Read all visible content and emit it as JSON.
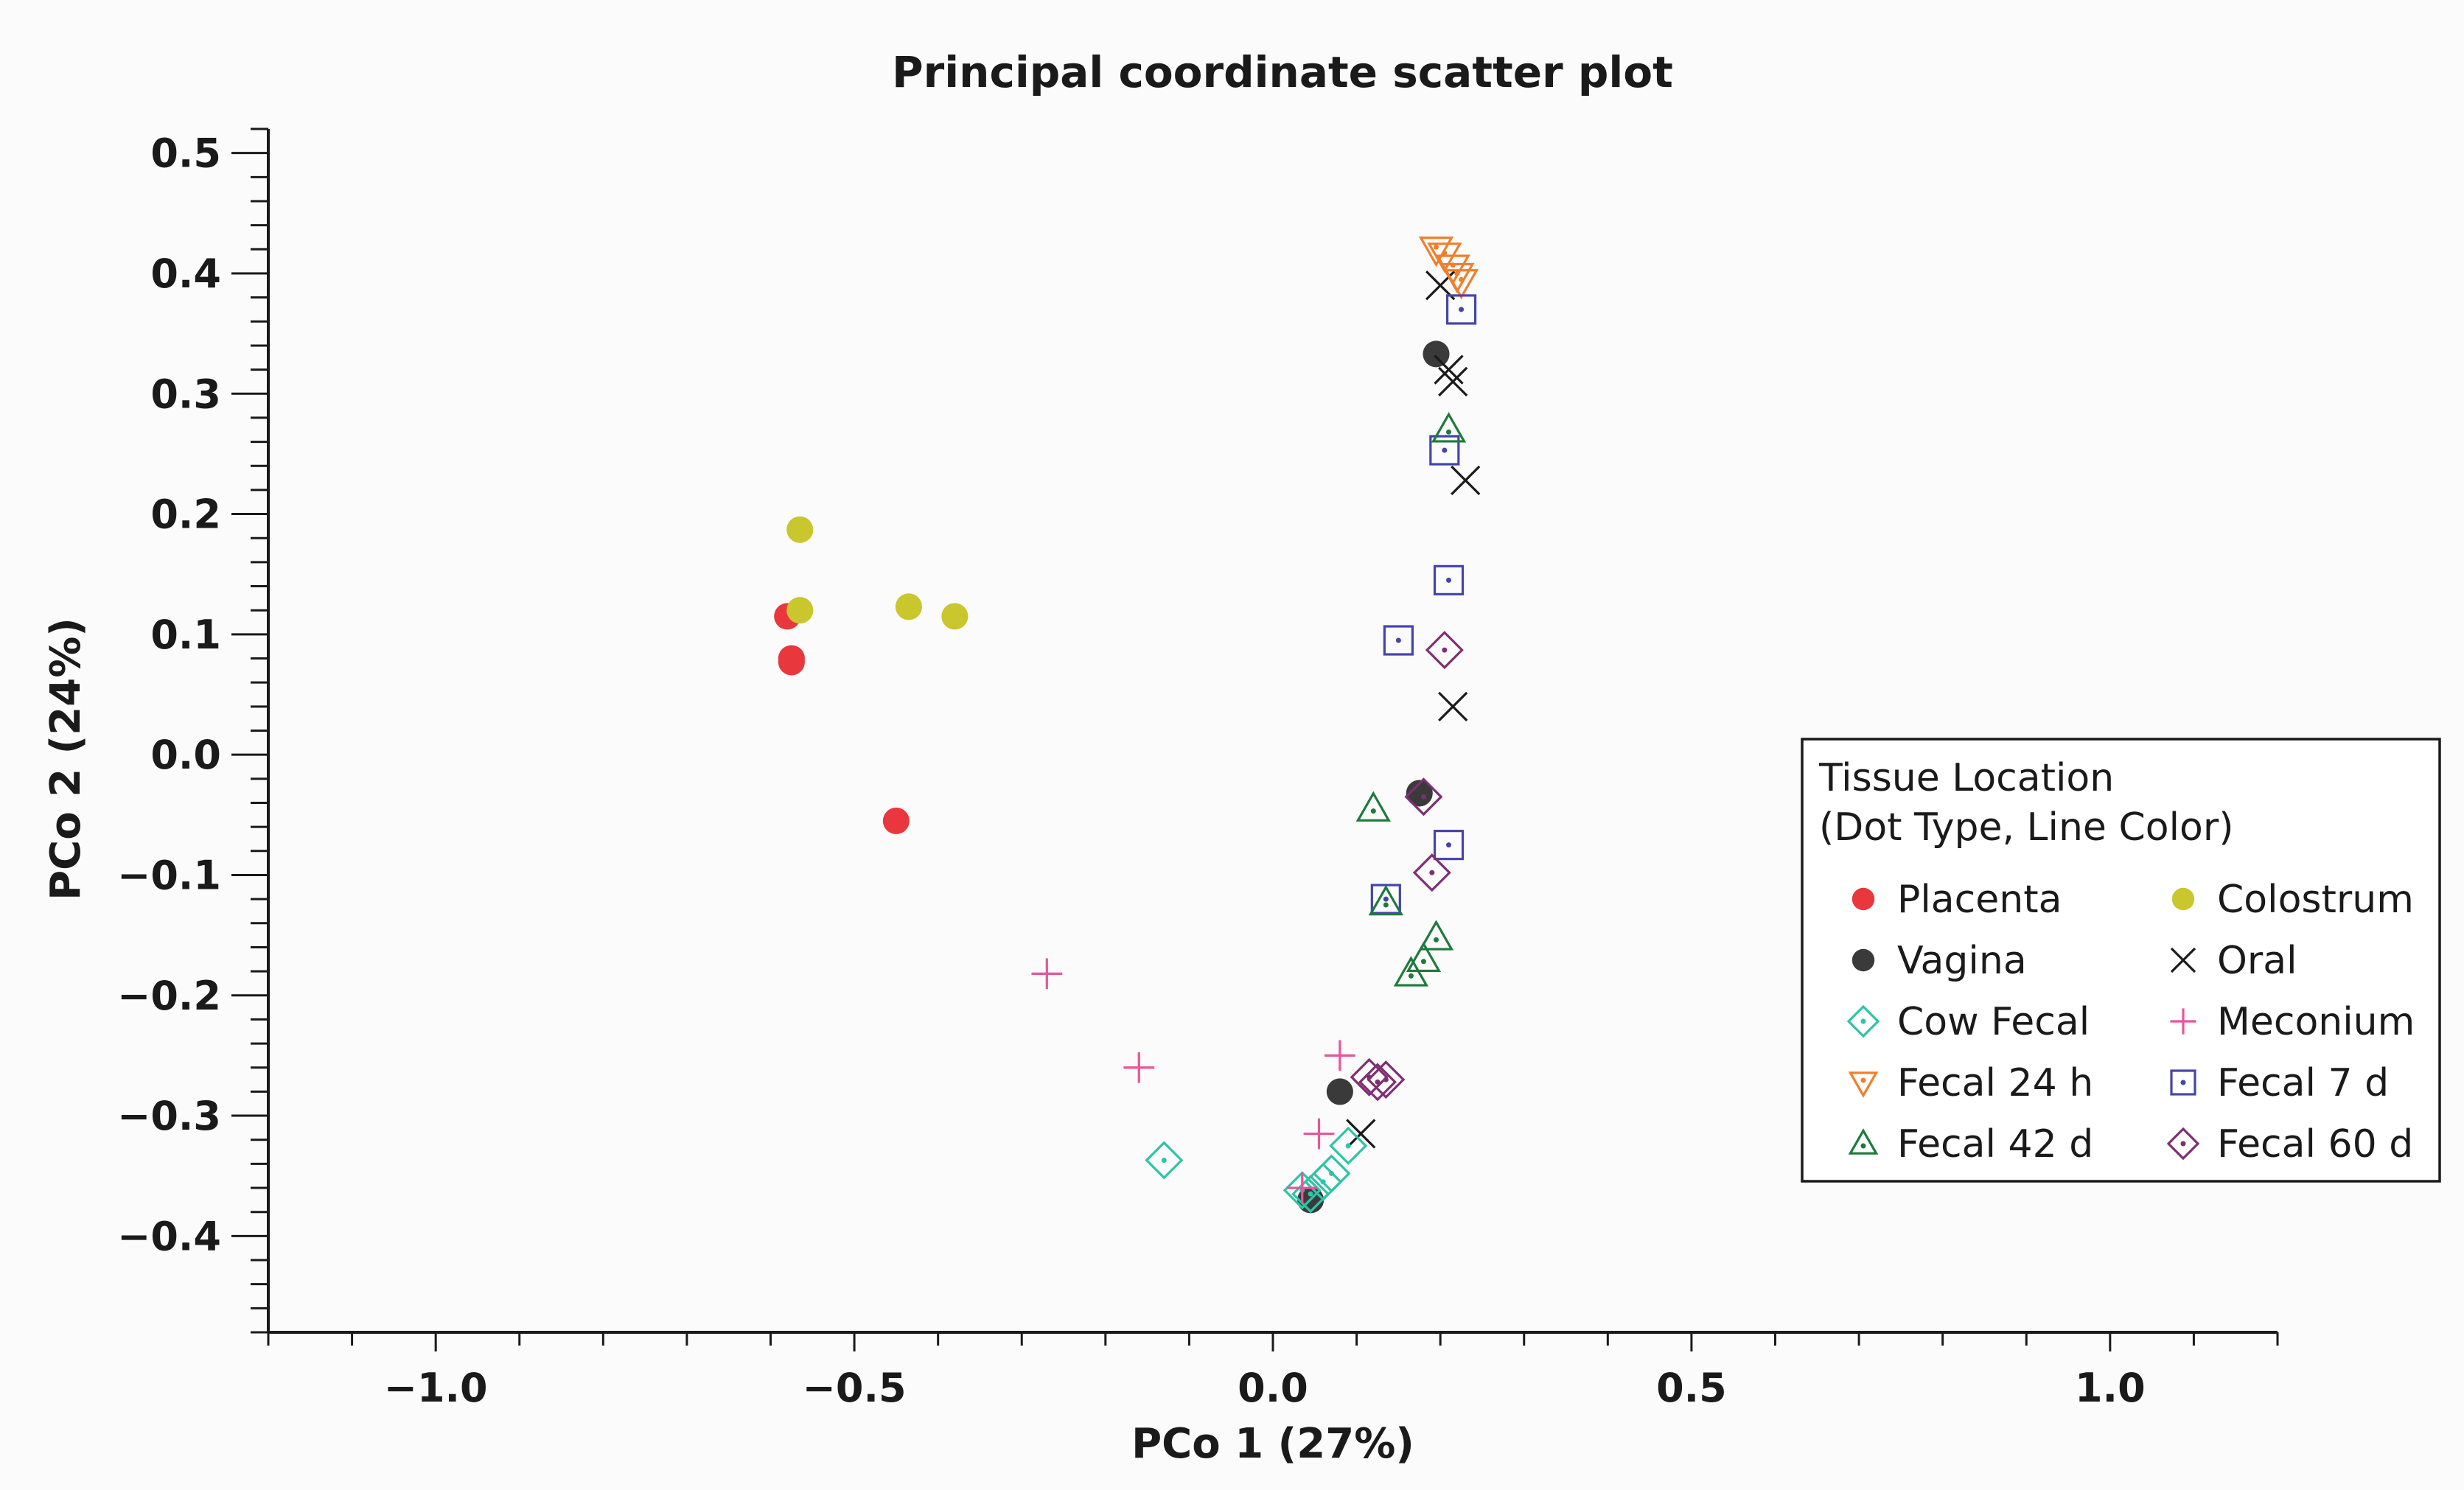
{
  "chart_data": {
    "type": "scatter",
    "title": "Principal coordinate scatter plot",
    "xlabel": "PCo 1 (27%)",
    "ylabel": "PCo 2 (24%)",
    "xlim": [
      -1.2,
      1.2
    ],
    "ylim": [
      -0.48,
      0.52
    ],
    "x_ticks": [
      {
        "value": -1.0,
        "label": "−1.0"
      },
      {
        "value": -0.5,
        "label": "−0.5"
      },
      {
        "value": 0.0,
        "label": "0.0"
      },
      {
        "value": 0.5,
        "label": "0.5"
      },
      {
        "value": 1.0,
        "label": "1.0"
      }
    ],
    "y_ticks": [
      {
        "value": 0.5,
        "label": "0.5"
      },
      {
        "value": 0.4,
        "label": "0.4"
      },
      {
        "value": 0.3,
        "label": "0.3"
      },
      {
        "value": 0.2,
        "label": "0.2"
      },
      {
        "value": 0.1,
        "label": "0.1"
      },
      {
        "value": 0.0,
        "label": "0.0"
      },
      {
        "value": -0.1,
        "label": "−0.1"
      },
      {
        "value": -0.2,
        "label": "−0.2"
      },
      {
        "value": -0.3,
        "label": "−0.3"
      },
      {
        "value": -0.4,
        "label": "−0.4"
      }
    ],
    "legend": {
      "title_line1": "Tissue Location",
      "title_line2": "(Dot Type, Line Color)",
      "placement": "right"
    },
    "series": [
      {
        "name": "Placenta",
        "marker": "filled-circle",
        "color": "#e8383d",
        "points": [
          [
            -0.58,
            0.115
          ],
          [
            -0.575,
            0.08
          ],
          [
            -0.575,
            0.077
          ],
          [
            -0.45,
            -0.055
          ]
        ]
      },
      {
        "name": "Colostrum",
        "marker": "filled-circle",
        "color": "#c9c62e",
        "points": [
          [
            -0.565,
            0.187
          ],
          [
            -0.565,
            0.12
          ],
          [
            -0.435,
            0.123
          ],
          [
            -0.38,
            0.115
          ]
        ]
      },
      {
        "name": "Vagina",
        "marker": "filled-circle",
        "color": "#3a3a3a",
        "points": [
          [
            0.195,
            0.333
          ],
          [
            0.175,
            -0.032
          ],
          [
            0.08,
            -0.28
          ],
          [
            0.045,
            -0.37
          ]
        ]
      },
      {
        "name": "Oral",
        "marker": "x",
        "color": "#1a1a1a",
        "points": [
          [
            0.2,
            0.39
          ],
          [
            0.21,
            0.32
          ],
          [
            0.215,
            0.31
          ],
          [
            0.23,
            0.228
          ],
          [
            0.215,
            0.04
          ],
          [
            0.105,
            -0.315
          ]
        ]
      },
      {
        "name": "Cow Fecal",
        "marker": "diamond-dot",
        "color": "#2ec4a6",
        "points": [
          [
            -0.13,
            -0.337
          ],
          [
            0.035,
            -0.362
          ],
          [
            0.045,
            -0.365
          ],
          [
            0.06,
            -0.355
          ],
          [
            0.07,
            -0.348
          ],
          [
            0.09,
            -0.325
          ]
        ]
      },
      {
        "name": "Meconium",
        "marker": "plus",
        "color": "#e8559b",
        "points": [
          [
            -0.27,
            -0.182
          ],
          [
            -0.16,
            -0.26
          ],
          [
            0.08,
            -0.25
          ],
          [
            0.055,
            -0.315
          ],
          [
            0.035,
            -0.36
          ]
        ]
      },
      {
        "name": "Fecal 24 h",
        "marker": "triangle-down-dot",
        "color": "#f07f2c",
        "points": [
          [
            0.195,
            0.42
          ],
          [
            0.205,
            0.415
          ],
          [
            0.215,
            0.405
          ],
          [
            0.22,
            0.398
          ],
          [
            0.225,
            0.393
          ]
        ]
      },
      {
        "name": "Fecal 7 d",
        "marker": "square-dot",
        "color": "#4545a8",
        "points": [
          [
            0.225,
            0.37
          ],
          [
            0.205,
            0.253
          ],
          [
            0.21,
            0.145
          ],
          [
            0.15,
            0.095
          ],
          [
            0.21,
            -0.075
          ],
          [
            0.135,
            -0.12
          ]
        ]
      },
      {
        "name": "Fecal 42 d",
        "marker": "triangle-up-dot",
        "color": "#1e7a3c",
        "points": [
          [
            0.21,
            0.27
          ],
          [
            0.12,
            -0.045
          ],
          [
            0.135,
            -0.123
          ],
          [
            0.195,
            -0.152
          ],
          [
            0.18,
            -0.17
          ],
          [
            0.165,
            -0.182
          ]
        ]
      },
      {
        "name": "Fecal 60 d",
        "marker": "diamond-dot",
        "color": "#7e2f73",
        "points": [
          [
            0.205,
            0.087
          ],
          [
            0.18,
            -0.035
          ],
          [
            0.19,
            -0.098
          ],
          [
            0.115,
            -0.268
          ],
          [
            0.125,
            -0.272
          ],
          [
            0.135,
            -0.27
          ]
        ]
      }
    ],
    "legend_order": [
      "Placenta",
      "Colostrum",
      "Vagina",
      "Oral",
      "Cow Fecal",
      "Meconium",
      "Fecal 24 h",
      "Fecal 7 d",
      "Fecal 42 d",
      "Fecal 60 d"
    ]
  }
}
